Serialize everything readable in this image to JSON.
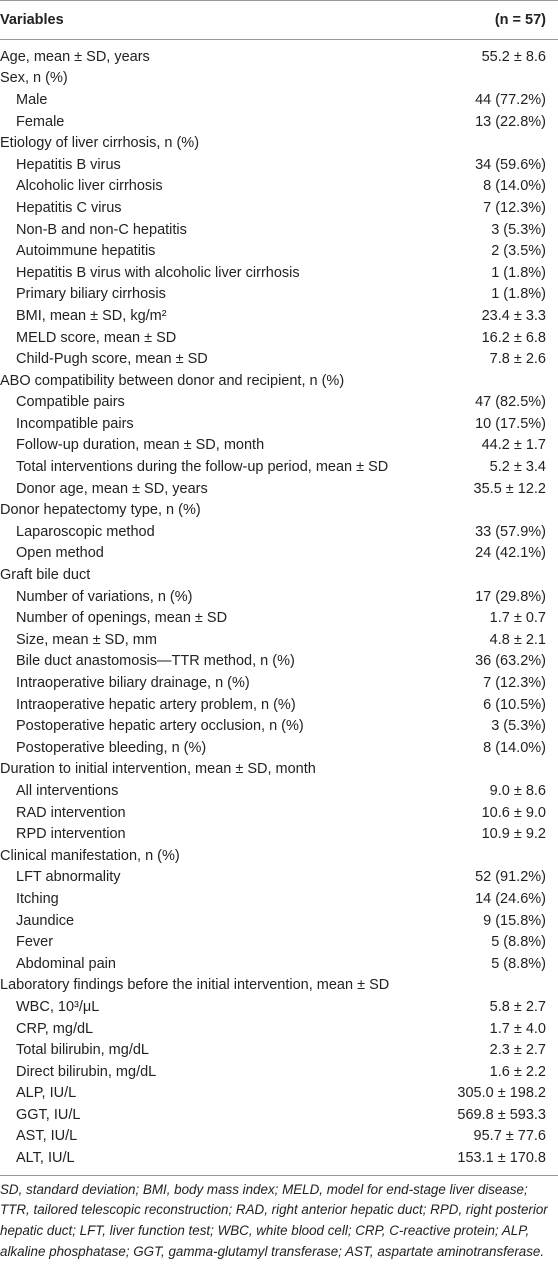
{
  "table": {
    "header": {
      "variable": "Variables",
      "value": "(n = 57)"
    },
    "rows": [
      {
        "label": "Age, mean ± SD, years",
        "value": "55.2 ± 8.6"
      },
      {
        "label": "Sex, n (%)",
        "items": [
          {
            "label": "Male",
            "value": "44 (77.2%)"
          },
          {
            "label": "Female",
            "value": "13 (22.8%)"
          }
        ]
      },
      {
        "label": "Etiology of liver cirrhosis, n (%)",
        "items": [
          {
            "label": "Hepatitis B virus",
            "value": "34 (59.6%)"
          },
          {
            "label": "Alcoholic liver cirrhosis",
            "value": "8 (14.0%)"
          },
          {
            "label": "Hepatitis C virus",
            "value": "7 (12.3%)"
          },
          {
            "label": "Non-B and non-C hepatitis",
            "value": "3 (5.3%)"
          },
          {
            "label": "Autoimmune hepatitis",
            "value": "2 (3.5%)"
          },
          {
            "label": "Hepatitis B virus with alcoholic liver cirrhosis",
            "value": "1 (1.8%)"
          },
          {
            "label": "Primary biliary cirrhosis",
            "value": "1 (1.8%)"
          },
          {
            "label": "BMI, mean ± SD, kg/m²",
            "value": "23.4 ± 3.3"
          },
          {
            "label": "MELD score, mean ± SD",
            "value": "16.2 ± 6.8"
          },
          {
            "label": "Child-Pugh score, mean ± SD",
            "value": "7.8 ± 2.6"
          }
        ]
      },
      {
        "label": "ABO compatibility between donor and recipient, n (%)",
        "items": [
          {
            "label": "Compatible pairs",
            "value": "47 (82.5%)"
          },
          {
            "label": "Incompatible pairs",
            "value": "10 (17.5%)"
          },
          {
            "label": "Follow-up duration, mean ± SD, month",
            "value": "44.2 ± 1.7"
          },
          {
            "label": "Total interventions during the follow-up period, mean ± SD",
            "value": "5.2 ± 3.4"
          },
          {
            "label": "Donor age, mean ± SD, years",
            "value": "35.5 ± 12.2"
          }
        ]
      },
      {
        "label": "Donor hepatectomy type, n (%)",
        "items": [
          {
            "label": "Laparoscopic method",
            "value": "33 (57.9%)"
          },
          {
            "label": "Open method",
            "value": "24 (42.1%)"
          }
        ]
      },
      {
        "label": "Graft bile duct",
        "items": [
          {
            "label": "Number of variations, n (%)",
            "value": "17 (29.8%)"
          },
          {
            "label": "Number of openings, mean ± SD",
            "value": "1.7 ± 0.7"
          },
          {
            "label": "Size, mean ± SD, mm",
            "value": "4.8 ± 2.1"
          },
          {
            "label": "Bile duct anastomosis—TTR method, n (%)",
            "value": "36 (63.2%)"
          },
          {
            "label": "Intraoperative biliary drainage, n (%)",
            "value": "7 (12.3%)"
          },
          {
            "label": "Intraoperative hepatic artery problem, n (%)",
            "value": "6 (10.5%)"
          },
          {
            "label": "Postoperative hepatic artery occlusion, n (%)",
            "value": "3 (5.3%)"
          },
          {
            "label": "Postoperative bleeding, n (%)",
            "value": "8 (14.0%)"
          }
        ]
      },
      {
        "label": "Duration to initial intervention, mean ± SD, month",
        "items": [
          {
            "label": "All interventions",
            "value": "9.0 ± 8.6"
          },
          {
            "label": "RAD intervention",
            "value": "10.6 ± 9.0"
          },
          {
            "label": "RPD intervention",
            "value": "10.9 ± 9.2"
          }
        ]
      },
      {
        "label": "Clinical manifestation, n (%)",
        "items": [
          {
            "label": "LFT abnormality",
            "value": "52 (91.2%)"
          },
          {
            "label": "Itching",
            "value": "14 (24.6%)"
          },
          {
            "label": "Jaundice",
            "value": "9 (15.8%)"
          },
          {
            "label": "Fever",
            "value": "5 (8.8%)"
          },
          {
            "label": "Abdominal pain",
            "value": "5 (8.8%)"
          }
        ]
      },
      {
        "label": "Laboratory findings before the initial intervention, mean ± SD",
        "items": [
          {
            "label": "WBC, 10³/μL",
            "value": "5.8 ± 2.7"
          },
          {
            "label": "CRP, mg/dL",
            "value": "1.7 ± 4.0"
          },
          {
            "label": "Total bilirubin, mg/dL",
            "value": "2.3 ± 2.7"
          },
          {
            "label": "Direct bilirubin, mg/dL",
            "value": "1.6 ± 2.2"
          },
          {
            "label": "ALP, IU/L",
            "value": "305.0 ± 198.2"
          },
          {
            "label": "GGT, IU/L",
            "value": "569.8 ± 593.3"
          },
          {
            "label": "AST, IU/L",
            "value": "95.7 ± 77.6"
          },
          {
            "label": "ALT, IU/L",
            "value": "153.1 ± 170.8"
          }
        ]
      }
    ],
    "footnote": "SD, standard deviation; BMI, body mass index; MELD, model for end-stage liver disease; TTR, tailored telescopic reconstruction; RAD, right anterior hepatic duct; RPD, right posterior hepatic duct; LFT, liver function test; WBC, white blood cell; CRP, C-reactive protein; ALP, alkaline phosphatase; GGT, gamma-glutamyl transferase; AST, aspartate aminotransferase."
  }
}
